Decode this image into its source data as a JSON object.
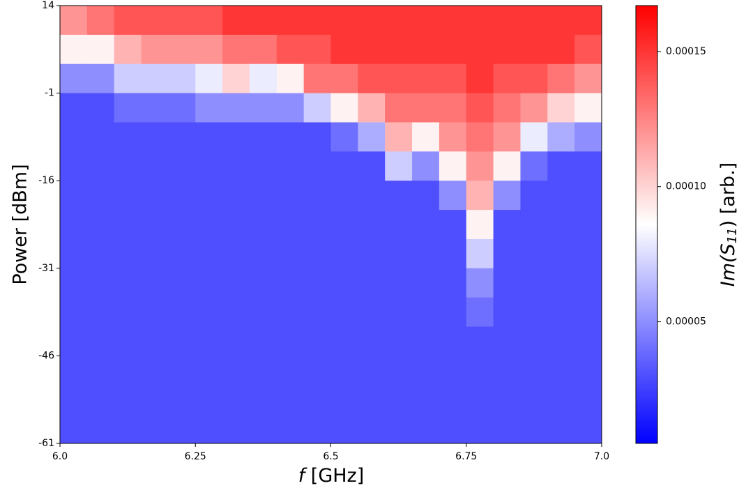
{
  "chart_data": {
    "type": "heatmap",
    "xlabel": [
      "f",
      " [GHz]"
    ],
    "ylabel": "Power [dBm]",
    "colorbar_label": [
      "Im(S",
      "11",
      ") [arb.]"
    ],
    "x": [
      6.025,
      6.075,
      6.125,
      6.175,
      6.225,
      6.275,
      6.325,
      6.375,
      6.425,
      6.475,
      6.525,
      6.575,
      6.625,
      6.675,
      6.725,
      6.775,
      6.825,
      6.875,
      6.925,
      6.975
    ],
    "y": [
      11.5,
      6.5,
      1.5,
      -3.5,
      -8.5,
      -13.5,
      -18.5,
      -23.5,
      -28.5,
      -33.5,
      -38.5,
      -43.5,
      -48.5,
      -53.5,
      -58.5
    ],
    "z": [
      [
        0.00012,
        0.00013,
        0.00014,
        0.00014,
        0.00014,
        0.00014,
        0.00015,
        0.00015,
        0.00015,
        0.00015,
        0.00015,
        0.00015,
        0.00015,
        0.00015,
        0.00015,
        0.00015,
        0.00015,
        0.00015,
        0.00015,
        0.00015
      ],
      [
        9e-05,
        9e-05,
        0.00011,
        0.00012,
        0.00012,
        0.00012,
        0.00013,
        0.00013,
        0.00014,
        0.00014,
        0.00015,
        0.00015,
        0.00015,
        0.00015,
        0.00015,
        0.00015,
        0.00015,
        0.00015,
        0.00015,
        0.00014
      ],
      [
        5e-05,
        5e-05,
        7e-05,
        7e-05,
        7e-05,
        8e-05,
        0.0001,
        8e-05,
        9e-05,
        0.00013,
        0.00013,
        0.00014,
        0.00014,
        0.00014,
        0.00014,
        0.00015,
        0.00014,
        0.00014,
        0.00013,
        0.00012
      ],
      [
        3e-05,
        3e-05,
        4e-05,
        4e-05,
        4e-05,
        5e-05,
        5e-05,
        5e-05,
        5e-05,
        7e-05,
        9e-05,
        0.00011,
        0.00013,
        0.00013,
        0.00013,
        0.00014,
        0.00013,
        0.00012,
        0.0001,
        9e-05
      ],
      [
        3e-05,
        3e-05,
        3e-05,
        3e-05,
        3e-05,
        3e-05,
        3e-05,
        3e-05,
        3e-05,
        3e-05,
        4e-05,
        6e-05,
        0.00011,
        9e-05,
        0.00012,
        0.00013,
        0.00012,
        8e-05,
        6e-05,
        5e-05
      ],
      [
        3e-05,
        3e-05,
        3e-05,
        3e-05,
        3e-05,
        3e-05,
        3e-05,
        3e-05,
        3e-05,
        3e-05,
        3e-05,
        3e-05,
        7e-05,
        5e-05,
        9e-05,
        0.00012,
        9e-05,
        4e-05,
        3e-05,
        3e-05
      ],
      [
        3e-05,
        3e-05,
        3e-05,
        3e-05,
        3e-05,
        3e-05,
        3e-05,
        3e-05,
        3e-05,
        3e-05,
        3e-05,
        3e-05,
        3e-05,
        3e-05,
        5e-05,
        0.00011,
        5e-05,
        3e-05,
        3e-05,
        3e-05
      ],
      [
        3e-05,
        3e-05,
        3e-05,
        3e-05,
        3e-05,
        3e-05,
        3e-05,
        3e-05,
        3e-05,
        3e-05,
        3e-05,
        3e-05,
        3e-05,
        3e-05,
        3e-05,
        9e-05,
        3e-05,
        3e-05,
        3e-05,
        3e-05
      ],
      [
        3e-05,
        3e-05,
        3e-05,
        3e-05,
        3e-05,
        3e-05,
        3e-05,
        3e-05,
        3e-05,
        3e-05,
        3e-05,
        3e-05,
        3e-05,
        3e-05,
        3e-05,
        7e-05,
        3e-05,
        3e-05,
        3e-05,
        3e-05
      ],
      [
        3e-05,
        3e-05,
        3e-05,
        3e-05,
        3e-05,
        3e-05,
        3e-05,
        3e-05,
        3e-05,
        3e-05,
        3e-05,
        3e-05,
        3e-05,
        3e-05,
        3e-05,
        5e-05,
        3e-05,
        3e-05,
        3e-05,
        3e-05
      ],
      [
        3e-05,
        3e-05,
        3e-05,
        3e-05,
        3e-05,
        3e-05,
        3e-05,
        3e-05,
        3e-05,
        3e-05,
        3e-05,
        3e-05,
        3e-05,
        3e-05,
        3e-05,
        4e-05,
        3e-05,
        3e-05,
        3e-05,
        3e-05
      ],
      [
        3e-05,
        3e-05,
        3e-05,
        3e-05,
        3e-05,
        3e-05,
        3e-05,
        3e-05,
        3e-05,
        3e-05,
        3e-05,
        3e-05,
        3e-05,
        3e-05,
        3e-05,
        3e-05,
        3e-05,
        3e-05,
        3e-05,
        3e-05
      ],
      [
        3e-05,
        3e-05,
        3e-05,
        3e-05,
        3e-05,
        3e-05,
        3e-05,
        3e-05,
        3e-05,
        3e-05,
        3e-05,
        3e-05,
        3e-05,
        3e-05,
        3e-05,
        3e-05,
        3e-05,
        3e-05,
        3e-05,
        3e-05
      ],
      [
        3e-05,
        3e-05,
        3e-05,
        3e-05,
        3e-05,
        3e-05,
        3e-05,
        3e-05,
        3e-05,
        3e-05,
        3e-05,
        3e-05,
        3e-05,
        3e-05,
        3e-05,
        3e-05,
        3e-05,
        3e-05,
        3e-05,
        3e-05
      ],
      [
        3e-05,
        3e-05,
        3e-05,
        3e-05,
        3e-05,
        3e-05,
        3e-05,
        3e-05,
        3e-05,
        3e-05,
        3e-05,
        3e-05,
        3e-05,
        3e-05,
        3e-05,
        3e-05,
        3e-05,
        3e-05,
        3e-05,
        3e-05
      ]
    ],
    "xlim": [
      6,
      7
    ],
    "xticks": [
      {
        "value": 6,
        "label": "6.0"
      },
      6.25,
      6.5,
      6.75,
      {
        "value": 7,
        "label": "7.0"
      }
    ],
    "ylim": [
      -61,
      14
    ],
    "yticks": [
      14,
      -1,
      -16,
      -31,
      -46,
      -61
    ],
    "clim": [
      5e-06,
      0.000167
    ],
    "cticks": [
      5e-05,
      {
        "value": 0.0001,
        "label": "0.00010"
      },
      0.00015
    ],
    "colormap": [
      "#0000ff",
      "#ffffff",
      "#ff0000"
    ]
  }
}
